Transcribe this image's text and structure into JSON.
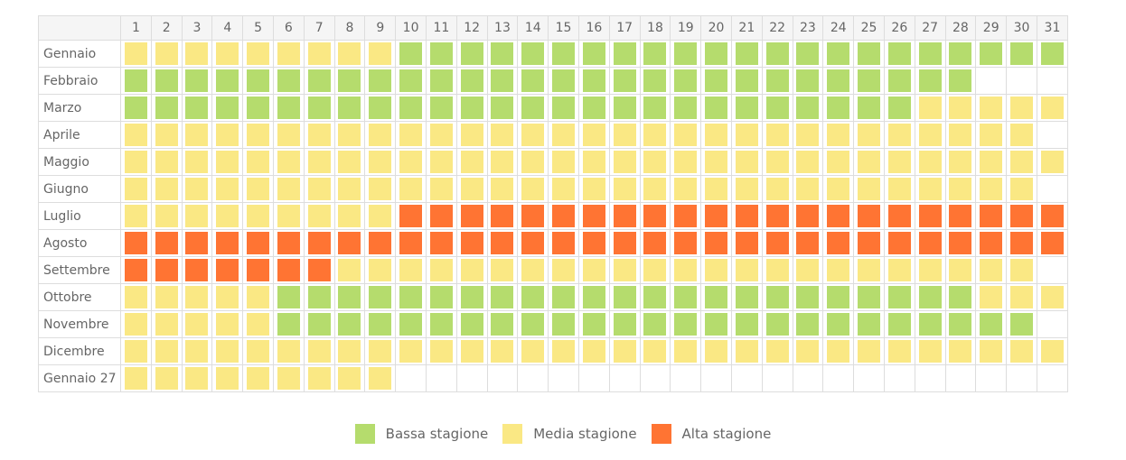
{
  "colors": {
    "B": "#b5dc6d",
    "M": "#fae884",
    "A": "#ff7433"
  },
  "days": [
    "1",
    "2",
    "3",
    "4",
    "5",
    "6",
    "7",
    "8",
    "9",
    "10",
    "11",
    "12",
    "13",
    "14",
    "15",
    "16",
    "17",
    "18",
    "19",
    "20",
    "21",
    "22",
    "23",
    "24",
    "25",
    "26",
    "27",
    "28",
    "29",
    "30",
    "31"
  ],
  "months": [
    {
      "label": "Gennaio",
      "days": "MMMMMMMMMBBBBBBBBBBBBBBBBBBBBBB"
    },
    {
      "label": "Febbraio",
      "days": "BBBBBBBBBBBBBBBBBBBBBBBBBBBB"
    },
    {
      "label": "Marzo",
      "days": "BBBBBBBBBBBBBBBBBBBBBBBBBBMMMMM"
    },
    {
      "label": "Aprile",
      "days": "MMMMMMMMMMMMMMMMMMMMMMMMMMMMMM"
    },
    {
      "label": "Maggio",
      "days": "MMMMMMMMMMMMMMMMMMMMMMMMMMMMMMM"
    },
    {
      "label": "Giugno",
      "days": "MMMMMMMMMMMMMMMMMMMMMMMMMMMMMM"
    },
    {
      "label": "Luglio",
      "days": "MMMMMMMMMAAAAAAAAAAAAAAAAAAAAAA"
    },
    {
      "label": "Agosto",
      "days": "AAAAAAAAAAAAAAAAAAAAAAAAAAAAAAA"
    },
    {
      "label": "Settembre",
      "days": "AAAAAAAMMMMMMMMMMMMMMMMMMMMMMM"
    },
    {
      "label": "Ottobre",
      "days": "MMMMMBBBBBBBBBBBBBBBBBBBBBBBMMM"
    },
    {
      "label": "Novembre",
      "days": "MMMMMBBBBBBBBBBBBBBBBBBBBBBBBB"
    },
    {
      "label": "Dicembre",
      "days": "MMMMMMMMMMMMMMMMMMMMMMMMMMMMMMM"
    },
    {
      "label": "Gennaio 27",
      "days": "MMMMMMMMM"
    }
  ],
  "legend": [
    {
      "code": "B",
      "label": "Bassa stagione"
    },
    {
      "code": "M",
      "label": "Media stagione"
    },
    {
      "code": "A",
      "label": "Alta stagione"
    }
  ]
}
